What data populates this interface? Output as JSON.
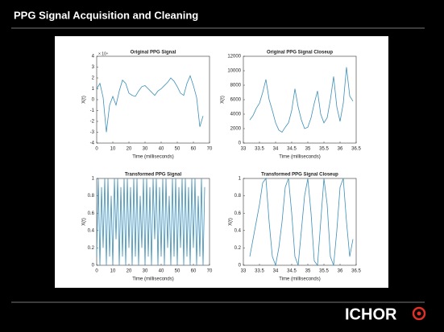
{
  "header": {
    "title": "PPG Signal Acquisition and Cleaning"
  },
  "footer": {
    "logo": "ICHOR"
  },
  "chart_data": [
    {
      "type": "line",
      "title": "Original PPG Signal",
      "xlabel": "Time (milliseconds)",
      "ylabel": "X(t)",
      "y_exponent": "× 10⁴",
      "color": "#3d8fb8",
      "x": [
        0,
        2,
        4,
        6,
        8,
        10,
        12,
        14,
        16,
        18,
        20,
        22,
        24,
        26,
        28,
        30,
        32,
        34,
        36,
        38,
        40,
        42,
        44,
        46,
        48,
        50,
        52,
        54,
        56,
        58,
        60,
        62,
        64,
        66
      ],
      "values": [
        1.0,
        1.5,
        0.2,
        -3.0,
        -0.5,
        0.3,
        -0.5,
        0.8,
        1.8,
        1.5,
        0.6,
        0.4,
        0.3,
        0.8,
        1.2,
        1.3,
        1.0,
        0.7,
        0.4,
        0.8,
        1.0,
        1.3,
        1.6,
        2.0,
        1.7,
        1.2,
        0.6,
        0.4,
        1.5,
        2.2,
        1.3,
        0.2,
        -2.5,
        -1.5
      ],
      "xlim": [
        0,
        70
      ],
      "xticks": [
        0,
        10,
        20,
        30,
        40,
        50,
        60,
        70
      ],
      "ylim": [
        -4,
        4
      ],
      "yticks": [
        -4,
        -3,
        -2,
        -1,
        0,
        1,
        2,
        3,
        4
      ]
    },
    {
      "type": "line",
      "title": "Original PPG Signal Closeup",
      "xlabel": "Time (milliseconds)",
      "ylabel": "X(t)",
      "color": "#3d8fb8",
      "x": [
        33.2,
        33.3,
        33.4,
        33.5,
        33.6,
        33.7,
        33.8,
        33.9,
        34.0,
        34.1,
        34.2,
        34.3,
        34.4,
        34.5,
        34.6,
        34.7,
        34.8,
        34.9,
        35.0,
        35.1,
        35.2,
        35.3,
        35.4,
        35.5,
        35.6,
        35.7,
        35.8,
        35.9,
        36.0,
        36.1,
        36.2,
        36.3,
        36.4
      ],
      "values": [
        3200,
        3800,
        4800,
        5500,
        7000,
        8800,
        6000,
        4500,
        2800,
        1800,
        1500,
        2200,
        2800,
        4500,
        7500,
        5000,
        3200,
        2000,
        2200,
        3500,
        5500,
        7200,
        4000,
        2800,
        3500,
        6000,
        9200,
        5000,
        3000,
        5500,
        10500,
        6500,
        5800
      ],
      "xlim": [
        33,
        36.5
      ],
      "xticks": [
        33,
        33.5,
        34,
        34.5,
        35,
        35.5,
        36,
        36.5
      ],
      "ylim": [
        0,
        12000
      ],
      "yticks": [
        0,
        2000,
        4000,
        6000,
        8000,
        10000,
        12000
      ]
    },
    {
      "type": "line",
      "title": "Transformed PPG Signal",
      "xlabel": "Time (milliseconds)",
      "ylabel": "X(t)",
      "color": "#3d8fb8",
      "x": [
        0,
        1,
        2,
        3,
        4,
        5,
        6,
        7,
        8,
        9,
        10,
        11,
        12,
        13,
        14,
        15,
        16,
        17,
        18,
        19,
        20,
        21,
        22,
        23,
        24,
        25,
        26,
        27,
        28,
        29,
        30,
        31,
        32,
        33,
        34,
        35,
        36,
        37,
        38,
        39,
        40,
        41,
        42,
        43,
        44,
        45,
        46,
        47,
        48,
        49,
        50,
        51,
        52,
        53,
        54,
        55,
        56,
        57,
        58,
        59,
        60,
        61,
        62,
        63,
        64,
        65,
        66,
        67
      ],
      "values": [
        0.1,
        1,
        0,
        0.9,
        0.2,
        1,
        0,
        1,
        0.1,
        0.8,
        0,
        1,
        0.3,
        1,
        0,
        0.9,
        0.1,
        1,
        0,
        1,
        0.2,
        0.9,
        0,
        1,
        0.1,
        1,
        0,
        0.8,
        0.2,
        1,
        0,
        1,
        0.1,
        0.9,
        0,
        1,
        0.3,
        1,
        0,
        0.9,
        0.1,
        1,
        0,
        1,
        0.2,
        0.8,
        0,
        1,
        0.1,
        1,
        0,
        0.9,
        0.2,
        1,
        0,
        1,
        0.1,
        0.9,
        0,
        1,
        0.2,
        1,
        0,
        0.8,
        0.1,
        1,
        0,
        0.9
      ],
      "xlim": [
        0,
        70
      ],
      "xticks": [
        0,
        10,
        20,
        30,
        40,
        50,
        60,
        70
      ],
      "ylim": [
        0,
        1
      ],
      "yticks": [
        0,
        0.2,
        0.4,
        0.6,
        0.8,
        1
      ]
    },
    {
      "type": "line",
      "title": "Transformed PPG Signal Closeup",
      "xlabel": "Time (milliseconds)",
      "ylabel": "X(t)",
      "color": "#3d8fb8",
      "x": [
        33.2,
        33.3,
        33.4,
        33.5,
        33.6,
        33.7,
        33.8,
        33.9,
        34.0,
        34.1,
        34.2,
        34.3,
        34.4,
        34.5,
        34.6,
        34.7,
        34.8,
        34.9,
        35.0,
        35.1,
        35.2,
        35.3,
        35.4,
        35.5,
        35.6,
        35.7,
        35.8,
        35.9,
        36.0,
        36.1,
        36.2,
        36.3,
        36.4
      ],
      "values": [
        0.1,
        0.3,
        0.5,
        0.7,
        0.95,
        1.0,
        0.5,
        0.1,
        0.0,
        0.2,
        0.5,
        0.9,
        1.0,
        0.6,
        0.1,
        0.0,
        0.4,
        0.8,
        1.0,
        0.6,
        0.05,
        0.0,
        0.5,
        1.0,
        0.7,
        0.1,
        0.0,
        0.4,
        0.9,
        1.0,
        0.5,
        0.1,
        0.3
      ],
      "xlim": [
        33,
        36.5
      ],
      "xticks": [
        33,
        33.5,
        34,
        34.5,
        35,
        35.5,
        36,
        36.5
      ],
      "ylim": [
        0,
        1
      ],
      "yticks": [
        0,
        0.2,
        0.4,
        0.6,
        0.8,
        1
      ]
    }
  ]
}
